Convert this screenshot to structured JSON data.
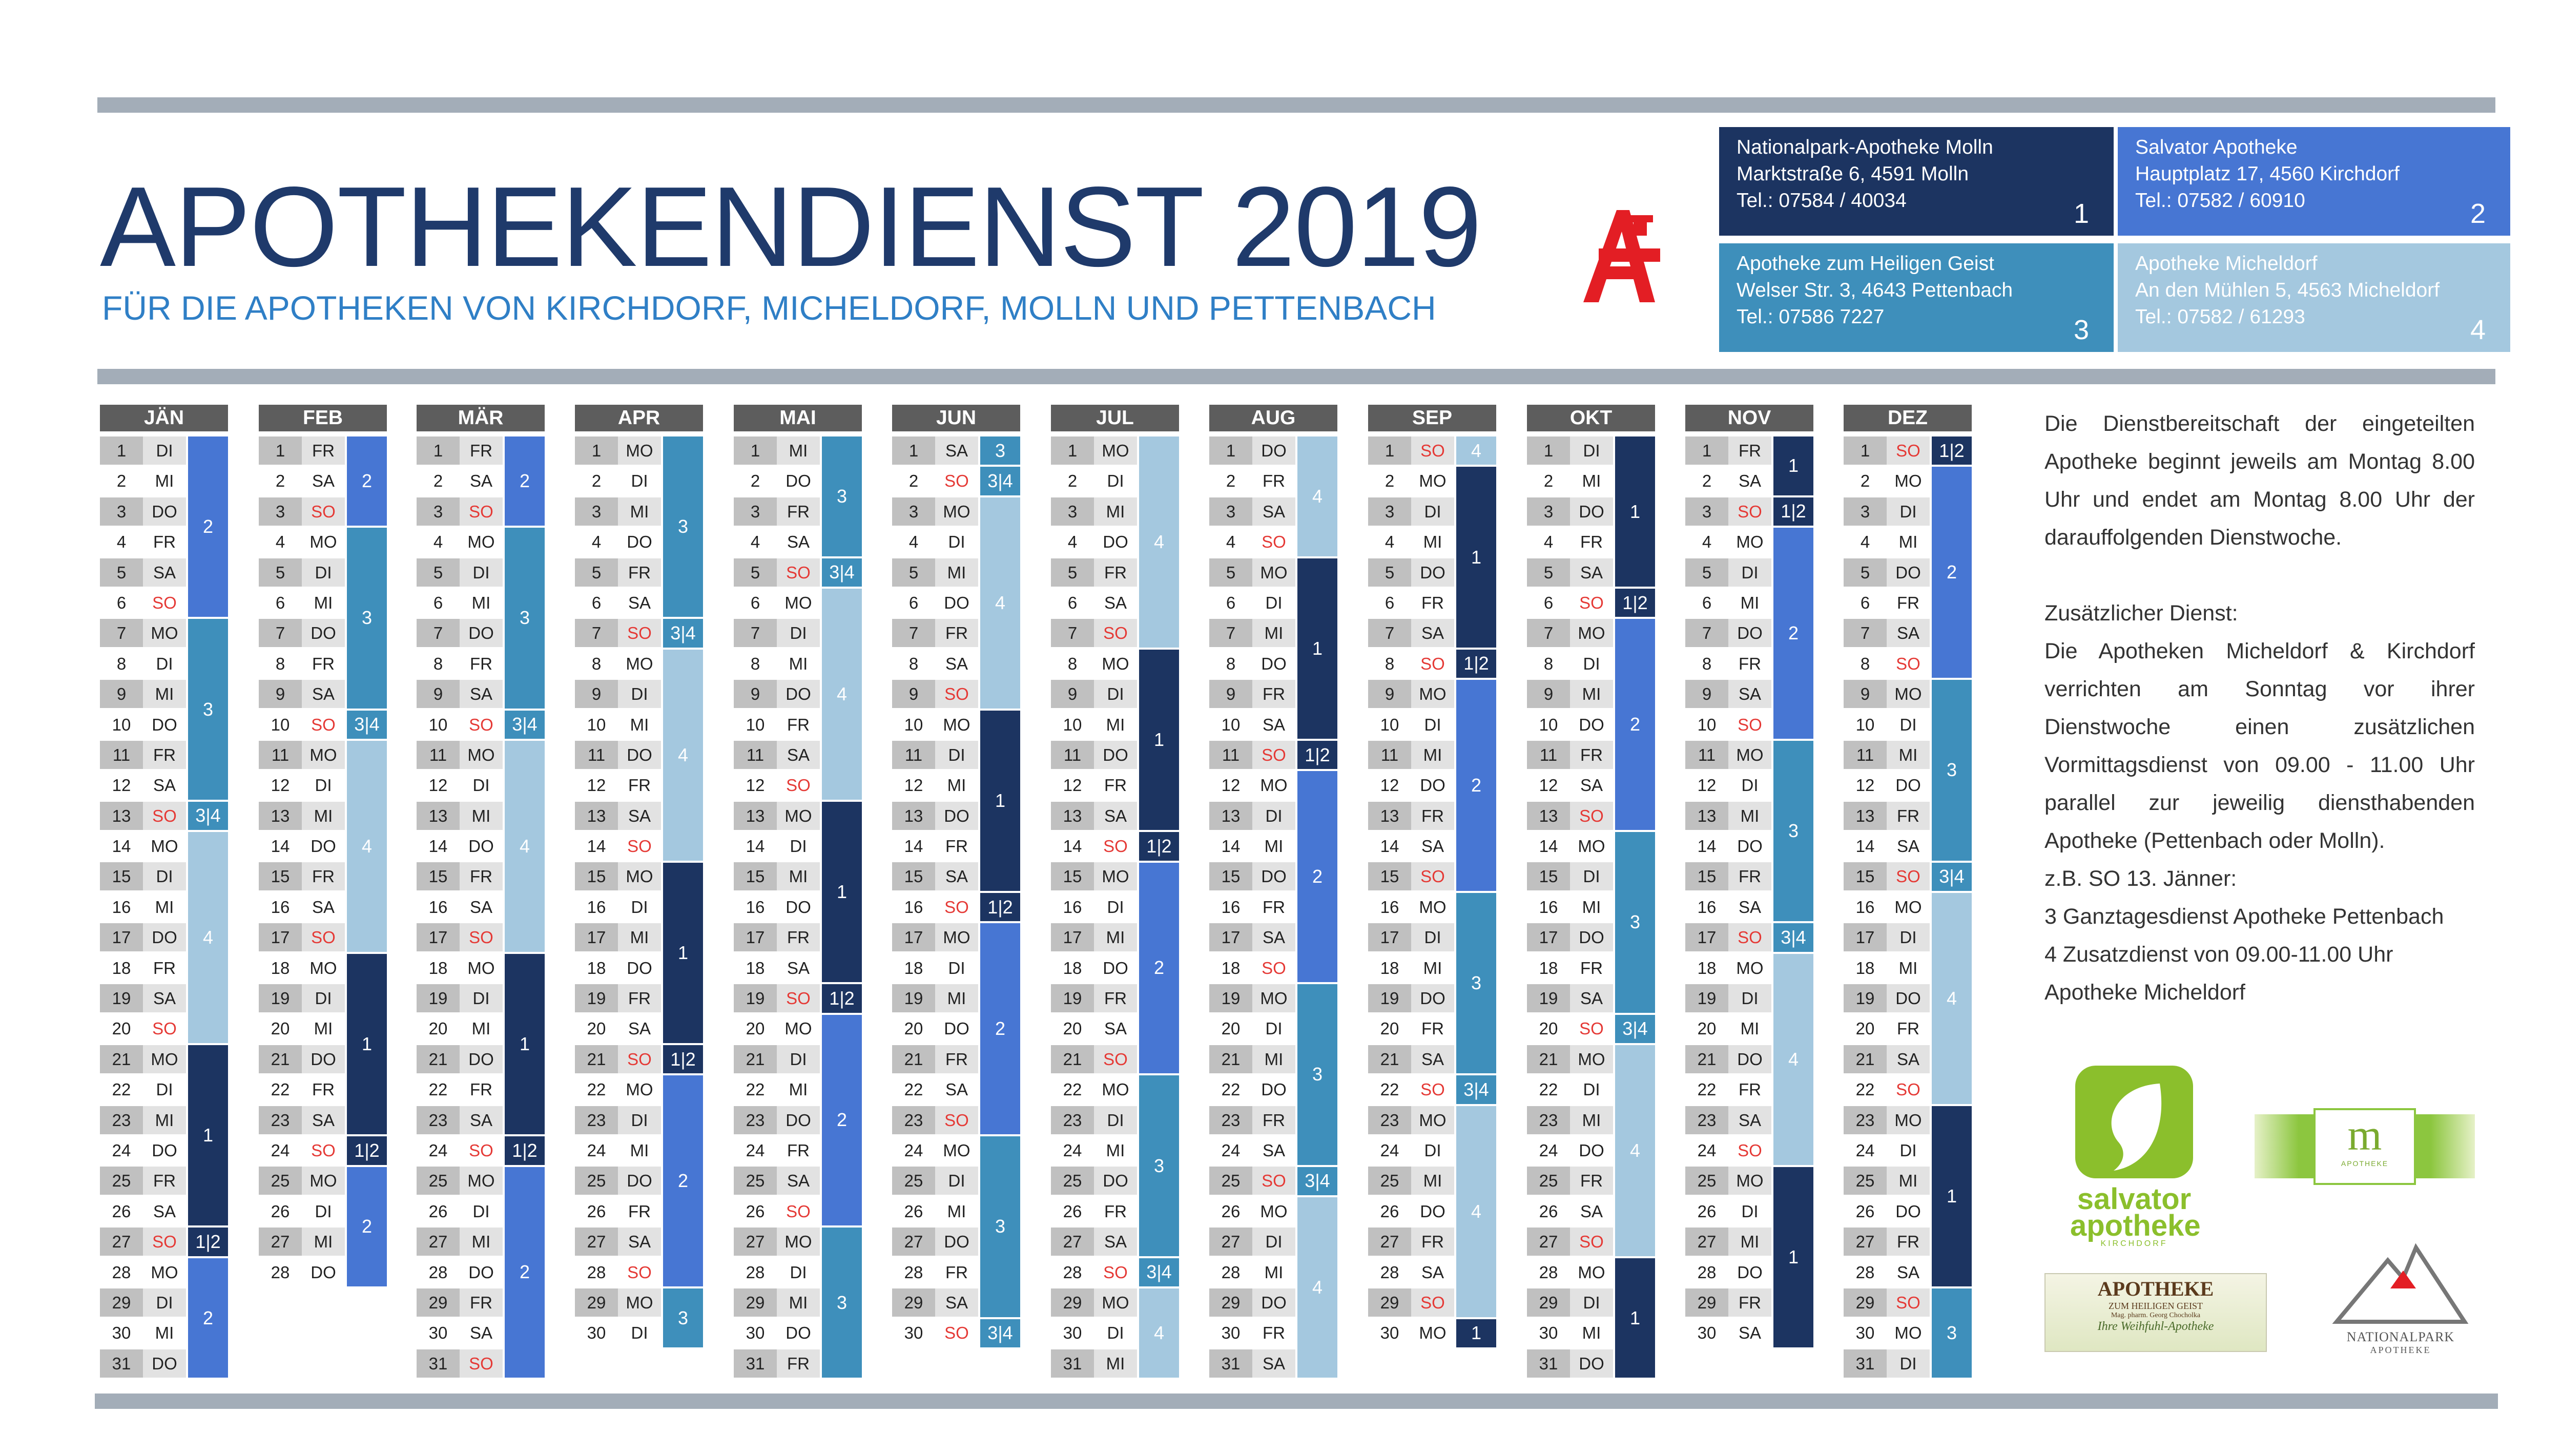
{
  "title": "APOTHEKENDIENST 2019",
  "subtitle": "FÜR DIE APOTHEKEN VON KIRCHDORF, MICHELDORF, MOLLN UND PETTENBACH",
  "colors": {
    "group1": "#1c3461",
    "group2": "#4776d3",
    "group3": "#3e8fbb",
    "group4": "#a4c8df",
    "accent": "#e31e24",
    "rule": "#a3adb8"
  },
  "pharmacies": [
    {
      "name": "Nationalpark-Apotheke Molln",
      "address": "Marktstraße 6, 4591 Molln",
      "phone": "Tel.: 07584 / 40034",
      "number": "1"
    },
    {
      "name": "Salvator Apotheke",
      "address": "Hauptplatz 17, 4560 Kirchdorf",
      "phone": "Tel.: 07582 / 60910",
      "number": "2"
    },
    {
      "name": "Apotheke zum Heiligen Geist",
      "address": "Welser Str. 3, 4643 Pettenbach",
      "phone": "Tel.: 07586 7227",
      "number": "3"
    },
    {
      "name": "Apotheke Micheldorf",
      "address": "An den Mühlen 5, 4563 Micheldorf",
      "phone": "Tel.: 07582 / 61293",
      "number": "4"
    }
  ],
  "months": [
    {
      "name": "JÄN",
      "days": [
        "DI",
        "MI",
        "DO",
        "FR",
        "SA",
        "SO",
        "MO",
        "DI",
        "MI",
        "DO",
        "FR",
        "SA",
        "SO",
        "MO",
        "DI",
        "MI",
        "DO",
        "FR",
        "SA",
        "SO",
        "MO",
        "DI",
        "MI",
        "DO",
        "FR",
        "SA",
        "SO",
        "MO",
        "DI",
        "MI",
        "DO"
      ],
      "duty": [
        {
          "label": "2",
          "days": 6
        },
        {
          "label": "3",
          "days": 6
        },
        {
          "label": "3|4",
          "days": 1
        },
        {
          "label": "4",
          "days": 7
        },
        {
          "label": "1",
          "days": 6
        },
        {
          "label": "1|2",
          "days": 1
        },
        {
          "label": "2",
          "days": 4
        }
      ]
    },
    {
      "name": "FEB",
      "days": [
        "FR",
        "SA",
        "SO",
        "MO",
        "DI",
        "MI",
        "DO",
        "FR",
        "SA",
        "SO",
        "MO",
        "DI",
        "MI",
        "DO",
        "FR",
        "SA",
        "SO",
        "MO",
        "DI",
        "MI",
        "DO",
        "FR",
        "SA",
        "SO",
        "MO",
        "DI",
        "MI",
        "DO"
      ],
      "duty": [
        {
          "label": "2",
          "days": 3
        },
        {
          "label": "3",
          "days": 6
        },
        {
          "label": "3|4",
          "days": 1
        },
        {
          "label": "4",
          "days": 7
        },
        {
          "label": "1",
          "days": 6
        },
        {
          "label": "1|2",
          "days": 1
        },
        {
          "label": "2",
          "days": 4
        }
      ]
    },
    {
      "name": "MÄR",
      "days": [
        "FR",
        "SA",
        "SO",
        "MO",
        "DI",
        "MI",
        "DO",
        "FR",
        "SA",
        "SO",
        "MO",
        "DI",
        "MI",
        "DO",
        "FR",
        "SA",
        "SO",
        "MO",
        "DI",
        "MI",
        "DO",
        "FR",
        "SA",
        "SO",
        "MO",
        "DI",
        "MI",
        "DO",
        "FR",
        "SA",
        "SO"
      ],
      "duty": [
        {
          "label": "2",
          "days": 3
        },
        {
          "label": "3",
          "days": 6
        },
        {
          "label": "3|4",
          "days": 1
        },
        {
          "label": "4",
          "days": 7
        },
        {
          "label": "1",
          "days": 6
        },
        {
          "label": "1|2",
          "days": 1
        },
        {
          "label": "2",
          "days": 7
        }
      ]
    },
    {
      "name": "APR",
      "days": [
        "MO",
        "DI",
        "MI",
        "DO",
        "FR",
        "SA",
        "SO",
        "MO",
        "DI",
        "MI",
        "DO",
        "FR",
        "SA",
        "SO",
        "MO",
        "DI",
        "MI",
        "DO",
        "FR",
        "SA",
        "SO",
        "MO",
        "DI",
        "MI",
        "DO",
        "FR",
        "SA",
        "SO",
        "MO",
        "DI"
      ],
      "duty": [
        {
          "label": "3",
          "days": 6
        },
        {
          "label": "3|4",
          "days": 1
        },
        {
          "label": "4",
          "days": 7
        },
        {
          "label": "1",
          "days": 6
        },
        {
          "label": "1|2",
          "days": 1
        },
        {
          "label": "2",
          "days": 7
        },
        {
          "label": "3",
          "days": 2
        }
      ]
    },
    {
      "name": "MAI",
      "days": [
        "MI",
        "DO",
        "FR",
        "SA",
        "SO",
        "MO",
        "DI",
        "MI",
        "DO",
        "FR",
        "SA",
        "SO",
        "MO",
        "DI",
        "MI",
        "DO",
        "FR",
        "SA",
        "SO",
        "MO",
        "DI",
        "MI",
        "DO",
        "FR",
        "SA",
        "SO",
        "MO",
        "DI",
        "MI",
        "DO",
        "FR"
      ],
      "duty": [
        {
          "label": "3",
          "days": 4
        },
        {
          "label": "3|4",
          "days": 1
        },
        {
          "label": "4",
          "days": 7
        },
        {
          "label": "1",
          "days": 6
        },
        {
          "label": "1|2",
          "days": 1
        },
        {
          "label": "2",
          "days": 7
        },
        {
          "label": "3",
          "days": 5
        }
      ]
    },
    {
      "name": "JUN",
      "days": [
        "SA",
        "SO",
        "MO",
        "DI",
        "MI",
        "DO",
        "FR",
        "SA",
        "SO",
        "MO",
        "DI",
        "MI",
        "DO",
        "FR",
        "SA",
        "SO",
        "MO",
        "DI",
        "MI",
        "DO",
        "FR",
        "SA",
        "SO",
        "MO",
        "DI",
        "MI",
        "DO",
        "FR",
        "SA",
        "SO"
      ],
      "duty": [
        {
          "label": "3",
          "days": 1
        },
        {
          "label": "3|4",
          "days": 1
        },
        {
          "label": "4",
          "days": 7
        },
        {
          "label": "1",
          "days": 6
        },
        {
          "label": "1|2",
          "days": 1
        },
        {
          "label": "2",
          "days": 7
        },
        {
          "label": "3",
          "days": 6
        },
        {
          "label": "3|4",
          "days": 1
        }
      ]
    },
    {
      "name": "JUL",
      "days": [
        "MO",
        "DI",
        "MI",
        "DO",
        "FR",
        "SA",
        "SO",
        "MO",
        "DI",
        "MI",
        "DO",
        "FR",
        "SA",
        "SO",
        "MO",
        "DI",
        "MI",
        "DO",
        "FR",
        "SA",
        "SO",
        "MO",
        "DI",
        "MI",
        "DO",
        "FR",
        "SA",
        "SO",
        "MO",
        "DI",
        "MI"
      ],
      "duty": [
        {
          "label": "4",
          "days": 7
        },
        {
          "label": "1",
          "days": 6
        },
        {
          "label": "1|2",
          "days": 1
        },
        {
          "label": "2",
          "days": 7
        },
        {
          "label": "3",
          "days": 6
        },
        {
          "label": "3|4",
          "days": 1
        },
        {
          "label": "4",
          "days": 3
        }
      ]
    },
    {
      "name": "AUG",
      "days": [
        "DO",
        "FR",
        "SA",
        "SO",
        "MO",
        "DI",
        "MI",
        "DO",
        "FR",
        "SA",
        "SO",
        "MO",
        "DI",
        "MI",
        "DO",
        "FR",
        "SA",
        "SO",
        "MO",
        "DI",
        "MI",
        "DO",
        "FR",
        "SA",
        "SO",
        "MO",
        "DI",
        "MI",
        "DO",
        "FR",
        "SA"
      ],
      "duty": [
        {
          "label": "4",
          "days": 4
        },
        {
          "label": "1",
          "days": 6
        },
        {
          "label": "1|2",
          "days": 1
        },
        {
          "label": "2",
          "days": 7
        },
        {
          "label": "3",
          "days": 6
        },
        {
          "label": "3|4",
          "days": 1
        },
        {
          "label": "4",
          "days": 6
        }
      ]
    },
    {
      "name": "SEP",
      "days": [
        "SO",
        "MO",
        "DI",
        "MI",
        "DO",
        "FR",
        "SA",
        "SO",
        "MO",
        "DI",
        "MI",
        "DO",
        "FR",
        "SA",
        "SO",
        "MO",
        "DI",
        "MI",
        "DO",
        "FR",
        "SA",
        "SO",
        "MO",
        "DI",
        "MI",
        "DO",
        "FR",
        "SA",
        "SO",
        "MO"
      ],
      "duty": [
        {
          "label": "4",
          "days": 1
        },
        {
          "label": "1",
          "days": 6
        },
        {
          "label": "1|2",
          "days": 1
        },
        {
          "label": "2",
          "days": 7
        },
        {
          "label": "3",
          "days": 6
        },
        {
          "label": "3|4",
          "days": 1
        },
        {
          "label": "4",
          "days": 7
        },
        {
          "label": "1",
          "days": 1
        }
      ]
    },
    {
      "name": "OKT",
      "days": [
        "DI",
        "MI",
        "DO",
        "FR",
        "SA",
        "SO",
        "MO",
        "DI",
        "MI",
        "DO",
        "FR",
        "SA",
        "SO",
        "MO",
        "DI",
        "MI",
        "DO",
        "FR",
        "SA",
        "SO",
        "MO",
        "DI",
        "MI",
        "DO",
        "FR",
        "SA",
        "SO",
        "MO",
        "DI",
        "MI",
        "DO"
      ],
      "duty": [
        {
          "label": "1",
          "days": 5
        },
        {
          "label": "1|2",
          "days": 1
        },
        {
          "label": "2",
          "days": 7
        },
        {
          "label": "3",
          "days": 6
        },
        {
          "label": "3|4",
          "days": 1
        },
        {
          "label": "4",
          "days": 7
        },
        {
          "label": "1",
          "days": 4
        }
      ]
    },
    {
      "name": "NOV",
      "days": [
        "FR",
        "SA",
        "SO",
        "MO",
        "DI",
        "MI",
        "DO",
        "FR",
        "SA",
        "SO",
        "MO",
        "DI",
        "MI",
        "DO",
        "FR",
        "SA",
        "SO",
        "MO",
        "DI",
        "MI",
        "DO",
        "FR",
        "SA",
        "SO",
        "MO",
        "DI",
        "MI",
        "DO",
        "FR",
        "SA"
      ],
      "duty": [
        {
          "label": "1",
          "days": 2
        },
        {
          "label": "1|2",
          "days": 1
        },
        {
          "label": "2",
          "days": 7
        },
        {
          "label": "3",
          "days": 6
        },
        {
          "label": "3|4",
          "days": 1
        },
        {
          "label": "4",
          "days": 7
        },
        {
          "label": "1",
          "days": 6
        }
      ]
    },
    {
      "name": "DEZ",
      "days": [
        "SO",
        "MO",
        "DI",
        "MI",
        "DO",
        "FR",
        "SA",
        "SO",
        "MO",
        "DI",
        "MI",
        "DO",
        "FR",
        "SA",
        "SO",
        "MO",
        "DI",
        "MI",
        "DO",
        "FR",
        "SA",
        "SO",
        "MO",
        "DI",
        "MI",
        "DO",
        "FR",
        "SA",
        "SO",
        "MO",
        "DI"
      ],
      "duty": [
        {
          "label": "1|2",
          "days": 1
        },
        {
          "label": "2",
          "days": 7
        },
        {
          "label": "3",
          "days": 6
        },
        {
          "label": "3|4",
          "days": 1
        },
        {
          "label": "4",
          "days": 7
        },
        {
          "label": "1",
          "days": 6
        },
        {
          "label": "3",
          "days": 3
        }
      ]
    }
  ],
  "info": {
    "p1": "Die Dienstbereitschaft der eingeteilten Apotheke beginnt jeweils am Montag 8.00 Uhr und endet am Montag 8.00 Uhr der darauffolgenden Dienstwoche.",
    "heading": "Zusätzlicher Dienst:",
    "p2": "Die Apotheken Micheldorf & Kirchdorf verrichten am Sonntag vor ihrer Dienstwoche einen zusätzlichen Vormittagsdienst von 09.00 - 11.00 Uhr parallel zur jeweilig diensthabenden Apotheke (Pettenbach oder Molln).",
    "example": "z.B. SO 13. Jänner:",
    "line1": "3 Ganztagesdienst Apotheke Pettenbach",
    "line2": "4 Zusatzdienst von 09.00-11.00 Uhr",
    "line3": "Apotheke Micheldorf"
  },
  "logos": {
    "salvator_line1": "salvator",
    "salvator_line2": "apotheke",
    "salvator_line3": "KIRCHDORF",
    "micheldorf_letter": "m",
    "micheldorf_text": "APOTHEKE",
    "heiliggeist_line1": "APOTHEKE",
    "heiliggeist_line2": "ZUM HEILIGEN GEIST",
    "heiliggeist_line3": "Mag. pharm. Georg Chocholka",
    "heiliggeist_line4": "Ihre Weihfuhl-Apotheke",
    "nationalpark_line1": "NATIONALPARK",
    "nationalpark_line2": "APOTHEKE"
  }
}
